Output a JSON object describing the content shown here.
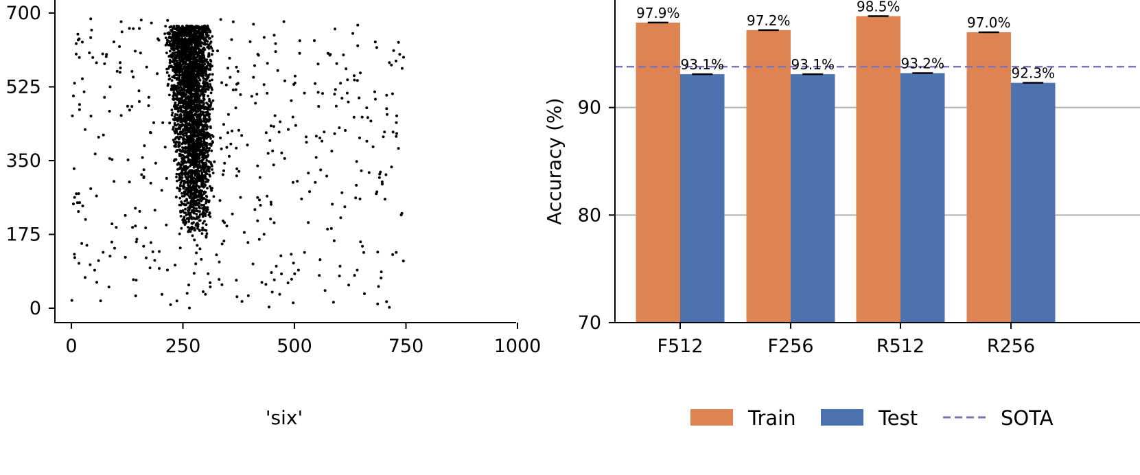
{
  "chart_data": [
    {
      "type": "scatter",
      "caption": "'six'",
      "xlim": [
        0,
        1000
      ],
      "ylim": [
        0,
        700
      ],
      "x_ticks": [
        "0",
        "250",
        "500",
        "750",
        "1000"
      ],
      "y_ticks": [
        "0",
        "175",
        "350",
        "525",
        "700"
      ],
      "point_color": "#000000",
      "dense_cluster": {
        "x_range_top": [
          205,
          320
        ],
        "x_range_bottom": [
          240,
          320
        ],
        "y_range": [
          170,
          670
        ],
        "approx_points": 3000
      },
      "scattered_points_approx": 450,
      "grid": false
    },
    {
      "type": "bar",
      "ylabel": "Accuracy (%)",
      "ylim": [
        70,
        100
      ],
      "y_ticks": [
        "70",
        "80",
        "90"
      ],
      "grid": "horizontal",
      "categories": [
        "F512",
        "F256",
        "R512",
        "R256"
      ],
      "series": [
        {
          "name": "Train",
          "color": "#dd8452",
          "values": [
            97.9,
            97.2,
            98.5,
            97.0
          ],
          "labels": [
            "97.9%",
            "97.2%",
            "98.5%",
            "97.0%"
          ]
        },
        {
          "name": "Test",
          "color": "#4c72b0",
          "values": [
            93.1,
            93.1,
            93.2,
            92.3
          ],
          "labels": [
            "93.1%",
            "93.1%",
            "93.2%",
            "92.3%"
          ]
        }
      ],
      "reference_line": {
        "name": "SOTA",
        "value": 93.8,
        "color": "#8172b3",
        "style": "dashed"
      },
      "legend": {
        "placement": "bottom",
        "entries": [
          "Train",
          "Test",
          "SOTA"
        ]
      }
    }
  ]
}
